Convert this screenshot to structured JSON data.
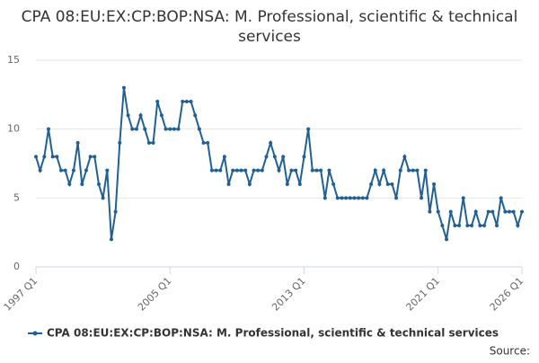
{
  "chart_data": {
    "type": "line",
    "title": "CPA 08:EU:EX:CP:BOP:NSA: M. Professional, scientific & technical services",
    "categories": [
      "1997 Q1",
      null,
      null,
      null,
      null,
      null,
      null,
      null,
      null,
      null,
      null,
      null,
      null,
      null,
      null,
      null,
      null,
      null,
      null,
      null,
      null,
      null,
      null,
      null,
      null,
      null,
      null,
      null,
      null,
      null,
      null,
      null,
      "2005 Q1",
      null,
      null,
      null,
      null,
      null,
      null,
      null,
      null,
      null,
      null,
      null,
      null,
      null,
      null,
      null,
      null,
      null,
      null,
      null,
      null,
      null,
      null,
      null,
      null,
      null,
      null,
      null,
      null,
      null,
      null,
      null,
      "2013 Q1",
      null,
      null,
      null,
      null,
      null,
      null,
      null,
      null,
      null,
      null,
      null,
      null,
      null,
      null,
      null,
      null,
      null,
      null,
      null,
      null,
      null,
      null,
      null,
      null,
      null,
      null,
      null,
      null,
      null,
      null,
      null,
      "2021 Q1",
      null,
      null,
      null,
      null,
      null,
      null,
      null,
      null,
      null,
      null,
      null,
      null,
      null,
      null,
      null,
      null,
      null,
      null,
      null,
      "2026 Q1"
    ],
    "series": [
      {
        "name": "CPA 08:EU:EX:CP:BOP:NSA: M. Professional, scientific & technical services",
        "color": "#206095",
        "values": [
          8,
          7,
          8,
          10,
          8,
          8,
          7,
          7,
          6,
          7,
          9,
          6,
          7,
          8,
          8,
          6,
          5,
          7,
          2,
          4,
          9,
          13,
          11,
          10,
          10,
          11,
          10,
          9,
          9,
          12,
          11,
          10,
          10,
          10,
          10,
          12,
          12,
          12,
          11,
          10,
          9,
          9,
          7,
          7,
          7,
          8,
          6,
          7,
          7,
          7,
          7,
          6,
          7,
          7,
          7,
          8,
          9,
          8,
          7,
          8,
          6,
          7,
          7,
          6,
          8,
          10,
          7,
          7,
          7,
          5,
          7,
          6,
          5,
          5,
          5,
          5,
          5,
          5,
          5,
          5,
          6,
          7,
          6,
          7,
          6,
          6,
          5,
          7,
          8,
          7,
          7,
          7,
          5,
          7,
          4,
          6,
          4,
          3,
          2,
          4,
          3,
          3,
          5,
          3,
          3,
          4,
          3,
          3,
          4,
          4,
          3,
          5,
          4,
          4,
          4,
          3,
          4
        ]
      }
    ],
    "ylim": [
      0,
      15
    ],
    "yticks": [
      0,
      5,
      10,
      15
    ],
    "grid": true,
    "source": "Source:"
  }
}
